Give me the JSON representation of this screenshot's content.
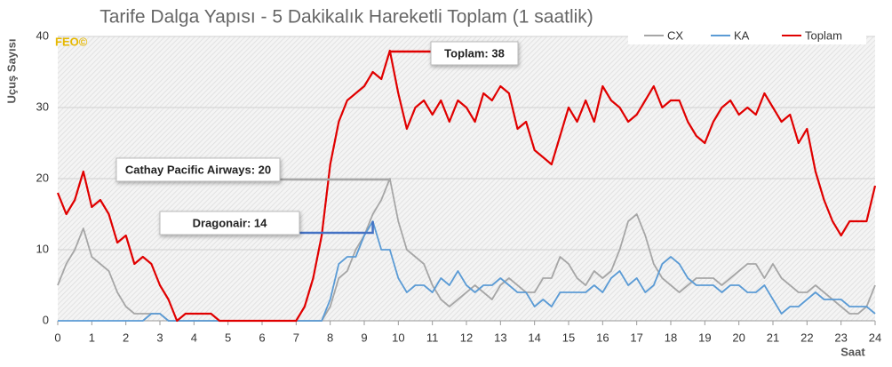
{
  "chart_data": {
    "type": "line",
    "title": "Tarife Dalga Yapısı - 5 Dakikalık Hareketli Toplam (1 saatlik)",
    "watermark": "FEO©",
    "xlabel": "Saat",
    "ylabel": "Uçuş Sayısı",
    "x": [
      0,
      0.25,
      0.5,
      0.75,
      1,
      1.25,
      1.5,
      1.75,
      2,
      2.25,
      2.5,
      2.75,
      3,
      3.25,
      3.5,
      3.75,
      4,
      4.25,
      4.5,
      4.75,
      5,
      5.25,
      5.5,
      5.75,
      6,
      6.25,
      6.5,
      6.75,
      7,
      7.25,
      7.5,
      7.75,
      8,
      8.25,
      8.5,
      8.75,
      9,
      9.25,
      9.5,
      9.75,
      10,
      10.25,
      10.5,
      10.75,
      11,
      11.25,
      11.5,
      11.75,
      12,
      12.25,
      12.5,
      12.75,
      13,
      13.25,
      13.5,
      13.75,
      14,
      14.25,
      14.5,
      14.75,
      15,
      15.25,
      15.5,
      15.75,
      16,
      16.25,
      16.5,
      16.75,
      17,
      17.25,
      17.5,
      17.75,
      18,
      18.25,
      18.5,
      18.75,
      19,
      19.25,
      19.5,
      19.75,
      20,
      20.25,
      20.5,
      20.75,
      21,
      21.25,
      21.5,
      21.75,
      22,
      22.25,
      22.5,
      22.75,
      23,
      23.25,
      23.5,
      23.75,
      24
    ],
    "series": [
      {
        "name": "CX",
        "color": "#a6a6a6",
        "values": [
          5,
          8,
          10,
          13,
          9,
          8,
          7,
          4,
          2,
          1,
          1,
          1,
          1,
          0,
          0,
          0,
          0,
          0,
          0,
          0,
          0,
          0,
          0,
          0,
          0,
          0,
          0,
          0,
          0,
          0,
          0,
          0,
          2,
          6,
          7,
          10,
          12,
          15,
          17,
          20,
          14,
          10,
          9,
          8,
          5,
          3,
          2,
          3,
          4,
          5,
          4,
          3,
          5,
          6,
          5,
          4,
          4,
          6,
          6,
          9,
          8,
          6,
          5,
          7,
          6,
          7,
          10,
          14,
          15,
          12,
          8,
          6,
          5,
          4,
          5,
          6,
          6,
          6,
          5,
          6,
          7,
          8,
          8,
          6,
          8,
          6,
          5,
          4,
          4,
          5,
          4,
          3,
          2,
          1,
          1,
          2,
          5
        ]
      },
      {
        "name": "KA",
        "color": "#5b9bd5",
        "values": [
          0,
          0,
          0,
          0,
          0,
          0,
          0,
          0,
          0,
          0,
          0,
          1,
          1,
          0,
          0,
          0,
          0,
          0,
          0,
          0,
          0,
          0,
          0,
          0,
          0,
          0,
          0,
          0,
          0,
          0,
          0,
          0,
          3,
          8,
          9,
          9,
          12,
          14,
          10,
          10,
          6,
          4,
          5,
          5,
          4,
          6,
          5,
          7,
          5,
          4,
          5,
          5,
          6,
          5,
          4,
          4,
          2,
          3,
          2,
          4,
          4,
          4,
          4,
          5,
          4,
          6,
          7,
          5,
          6,
          4,
          5,
          8,
          9,
          8,
          6,
          5,
          5,
          5,
          4,
          5,
          5,
          4,
          4,
          5,
          3,
          1,
          2,
          2,
          3,
          4,
          3,
          3,
          3,
          2,
          2,
          2,
          1
        ]
      },
      {
        "name": "Toplam",
        "color": "#e00000",
        "values": [
          18,
          15,
          17,
          21,
          16,
          17,
          15,
          11,
          12,
          8,
          9,
          8,
          5,
          3,
          0,
          1,
          1,
          1,
          1,
          0,
          0,
          0,
          0,
          0,
          0,
          0,
          0,
          0,
          0,
          2,
          6,
          12,
          22,
          28,
          31,
          32,
          33,
          35,
          34,
          38,
          32,
          27,
          30,
          31,
          29,
          31,
          28,
          31,
          30,
          28,
          32,
          31,
          33,
          32,
          27,
          28,
          24,
          23,
          22,
          26,
          30,
          28,
          31,
          28,
          33,
          31,
          30,
          28,
          29,
          31,
          33,
          30,
          31,
          31,
          28,
          26,
          25,
          28,
          30,
          31,
          29,
          30,
          29,
          32,
          30,
          28,
          29,
          25,
          27,
          21,
          17,
          14,
          12,
          14,
          14,
          14,
          19
        ]
      }
    ],
    "annotations": [
      {
        "text": "Toplam: 38",
        "x": 9.75,
        "y": 38
      },
      {
        "text": "Cathay Pacific Airways: 20",
        "x": 9.75,
        "y": 20
      },
      {
        "text": "Dragonair: 14",
        "x": 9.25,
        "y": 14
      }
    ],
    "xlim": [
      0,
      24
    ],
    "xticks": [
      0,
      1,
      2,
      3,
      4,
      5,
      6,
      7,
      8,
      9,
      10,
      11,
      12,
      13,
      14,
      15,
      16,
      17,
      18,
      19,
      20,
      21,
      22,
      23,
      24
    ],
    "ylim": [
      0,
      40
    ],
    "yticks": [
      0,
      10,
      20,
      30,
      40
    ],
    "grid": true,
    "legend": "top-right"
  }
}
